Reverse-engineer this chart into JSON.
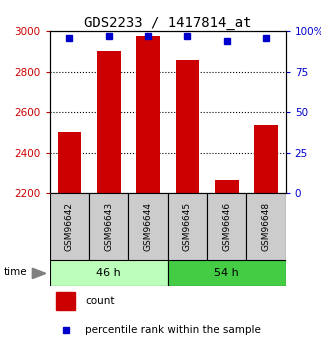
{
  "title": "GDS2233 / 1417814_at",
  "samples": [
    "GSM96642",
    "GSM96643",
    "GSM96644",
    "GSM96645",
    "GSM96646",
    "GSM96648"
  ],
  "bar_values": [
    2500,
    2900,
    2975,
    2855,
    2265,
    2535
  ],
  "percentile_values": [
    96,
    97,
    97,
    97,
    94,
    96
  ],
  "bar_color": "#cc0000",
  "percentile_color": "#0000cc",
  "ylim_left": [
    2200,
    3000
  ],
  "ylim_right": [
    0,
    100
  ],
  "yticks_left": [
    2200,
    2400,
    2600,
    2800,
    3000
  ],
  "yticks_right": [
    0,
    25,
    50,
    75,
    100
  ],
  "yticklabels_right": [
    "0",
    "25",
    "50",
    "75",
    "100%"
  ],
  "groups": [
    {
      "label": "46 h",
      "color_light": "#bbffbb",
      "color_dark": "#44cc44",
      "start": 0,
      "end": 3
    },
    {
      "label": "54 h",
      "color_light": "#44cc44",
      "color_dark": "#44cc44",
      "start": 3,
      "end": 6
    }
  ],
  "time_label": "time",
  "legend_count_label": "count",
  "legend_percentile_label": "percentile rank within the sample",
  "title_fontsize": 10,
  "tick_fontsize": 7.5,
  "bar_width": 0.6,
  "plot_bg": "#ffffff",
  "grid_color": "#000000",
  "sample_box_color": "#cccccc",
  "left_tick_color": "#cc0000",
  "right_tick_color": "#0000cc"
}
